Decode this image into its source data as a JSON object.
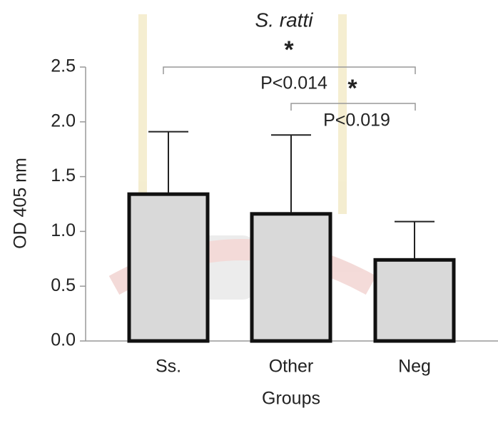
{
  "chart_data": {
    "type": "bar",
    "title": "S. ratti",
    "x_label": "Groups",
    "y_label": "OD 405 nm",
    "categories": [
      "Ss.",
      "Other",
      "Neg"
    ],
    "values": [
      1.34,
      1.16,
      0.74
    ],
    "errors": [
      0.57,
      0.72,
      0.35
    ],
    "color": "#d9d9d9",
    "ylim": [
      0,
      2.5
    ],
    "yticks": [
      {
        "value": 0,
        "label": "0.0"
      },
      0.5,
      {
        "value": 1,
        "label": "1.0"
      },
      1.5,
      {
        "value": 2,
        "label": "2.0"
      },
      2.5
    ],
    "annotations": [
      "*",
      "P<0.014",
      "*",
      "P<0.019"
    ]
  }
}
